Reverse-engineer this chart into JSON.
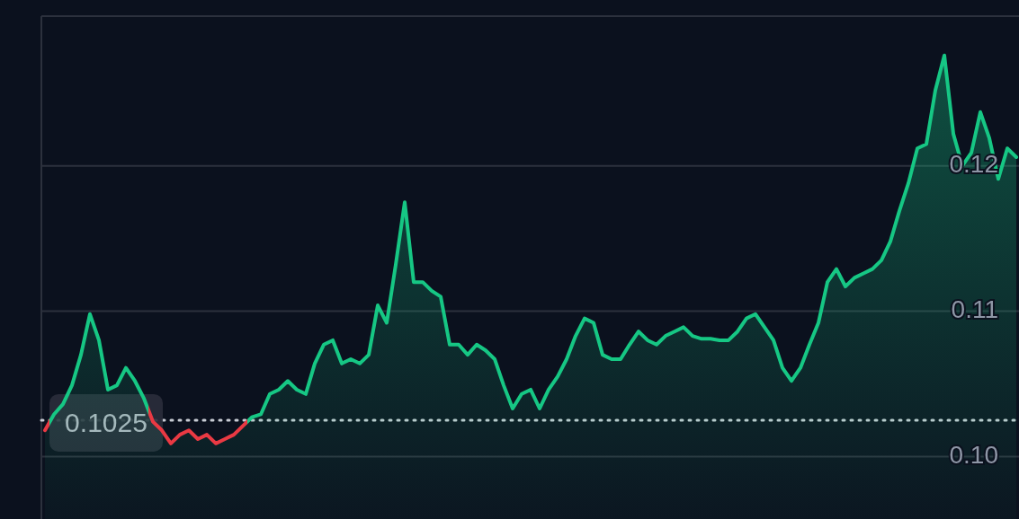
{
  "chart_data": {
    "type": "area",
    "categories": [
      null,
      null,
      null,
      null,
      null,
      null,
      null,
      null,
      null,
      null,
      null,
      null,
      null,
      null,
      null,
      null,
      null,
      null,
      null,
      null,
      null,
      null,
      null,
      null,
      null,
      null,
      null,
      null,
      null,
      null,
      null,
      null,
      null,
      null,
      null,
      null,
      null,
      null,
      null,
      null,
      null,
      null,
      null,
      null,
      null,
      null,
      null,
      null,
      null,
      null,
      null,
      null,
      null,
      null,
      null,
      null,
      null,
      null,
      null,
      null,
      null,
      null,
      null,
      null,
      null,
      null,
      null,
      null,
      null,
      null,
      null,
      null,
      null,
      null,
      null,
      null,
      null,
      null,
      null,
      null,
      null,
      null,
      null,
      null,
      null,
      null,
      null,
      null,
      null,
      null,
      null,
      null,
      null,
      null,
      null,
      null,
      null,
      null,
      null,
      null,
      null,
      null,
      null,
      null,
      null,
      null,
      null,
      null,
      null
    ],
    "series": [
      {
        "color": "#16c784",
        "values": [
          0.1018,
          0.1029,
          0.1036,
          0.1049,
          0.107,
          0.1098,
          0.108,
          0.1046,
          0.1049,
          0.1061,
          0.1052,
          0.104,
          0.1024,
          0.1018,
          0.1009,
          0.1015,
          0.1018,
          0.1012,
          0.1015,
          0.1009,
          0.1012,
          0.1015,
          0.1021,
          0.1027,
          0.1029,
          0.1043,
          0.1046,
          0.1052,
          0.1046,
          0.1043,
          0.1064,
          0.1077,
          0.108,
          0.1064,
          0.1067,
          0.1064,
          0.107,
          0.1104,
          0.1092,
          0.1132,
          0.1175,
          0.112,
          0.112,
          0.1114,
          0.111,
          0.1077,
          0.1077,
          0.107,
          0.1077,
          0.1073,
          0.1067,
          0.1049,
          0.1033,
          0.1043,
          0.1046,
          0.1033,
          0.1046,
          0.1055,
          0.1067,
          0.1083,
          0.1095,
          0.1092,
          0.107,
          0.1067,
          0.1067,
          0.1077,
          0.1086,
          0.108,
          0.1077,
          0.1083,
          0.1086,
          0.1089,
          0.1083,
          0.1081,
          0.1081,
          0.108,
          0.108,
          0.1086,
          0.1095,
          0.1098,
          0.1089,
          0.108,
          0.1061,
          0.1052,
          0.1061,
          0.1077,
          0.1092,
          0.112,
          0.1129,
          0.1117,
          0.1123,
          0.1126,
          0.1129,
          0.1135,
          0.1148,
          0.1169,
          0.1188,
          0.1212,
          0.1215,
          0.1252,
          0.1276,
          0.1222,
          0.12,
          0.1209,
          0.1237,
          0.1219,
          0.1191,
          0.1212,
          0.1206
        ],
        "colors": [
          "#ea3943",
          "#16c784",
          "#16c784",
          "#16c784",
          "#16c784",
          "#16c784",
          "#16c784",
          "#16c784",
          "#16c784",
          "#16c784",
          "#16c784",
          "#16c784",
          "#ea3943",
          "#ea3943",
          "#ea3943",
          "#ea3943",
          "#ea3943",
          "#ea3943",
          "#ea3943",
          "#ea3943",
          "#ea3943",
          "#ea3943",
          "#ea3943",
          "#16c784",
          "#16c784",
          "#16c784",
          "#16c784",
          "#16c784",
          "#16c784",
          "#16c784",
          "#16c784",
          "#16c784",
          "#16c784",
          "#16c784",
          "#16c784",
          "#16c784",
          "#16c784",
          "#16c784",
          "#16c784",
          "#16c784",
          "#16c784",
          "#16c784",
          "#16c784",
          "#16c784",
          "#16c784",
          "#16c784",
          "#16c784",
          "#16c784",
          "#16c784",
          "#16c784",
          "#16c784",
          "#16c784",
          "#16c784",
          "#16c784",
          "#16c784",
          "#16c784",
          "#16c784",
          "#16c784",
          "#16c784",
          "#16c784",
          "#16c784",
          "#16c784",
          "#16c784",
          "#16c784",
          "#16c784",
          "#16c784",
          "#16c784",
          "#16c784",
          "#16c784",
          "#16c784",
          "#16c784",
          "#16c784",
          "#16c784",
          "#16c784",
          "#16c784",
          "#16c784",
          "#16c784",
          "#16c784",
          "#16c784",
          "#16c784",
          "#16c784",
          "#16c784",
          "#16c784",
          "#16c784",
          "#16c784",
          "#16c784",
          "#16c784",
          "#16c784",
          "#16c784",
          "#16c784",
          "#16c784",
          "#16c784",
          "#16c784",
          "#16c784",
          "#16c784",
          "#16c784",
          "#16c784",
          "#16c784",
          "#16c784",
          "#16c784",
          "#16c784",
          "#16c784",
          "#16c784",
          "#16c784",
          "#16c784",
          "#16c784",
          "#16c784",
          "#16c784",
          "#16c784"
        ]
      }
    ],
    "ylim": [
      0.0957,
      0.1303
    ],
    "yticks": [
      {
        "value": 0.1,
        "label": "0.10"
      },
      0.11,
      0.12
    ],
    "grid": "y",
    "ref_lines": [
      {
        "axis": "y",
        "value": 0.1025,
        "label": "0.1025",
        "color": "#c8ccd4",
        "line_style": "dotted"
      }
    ]
  }
}
